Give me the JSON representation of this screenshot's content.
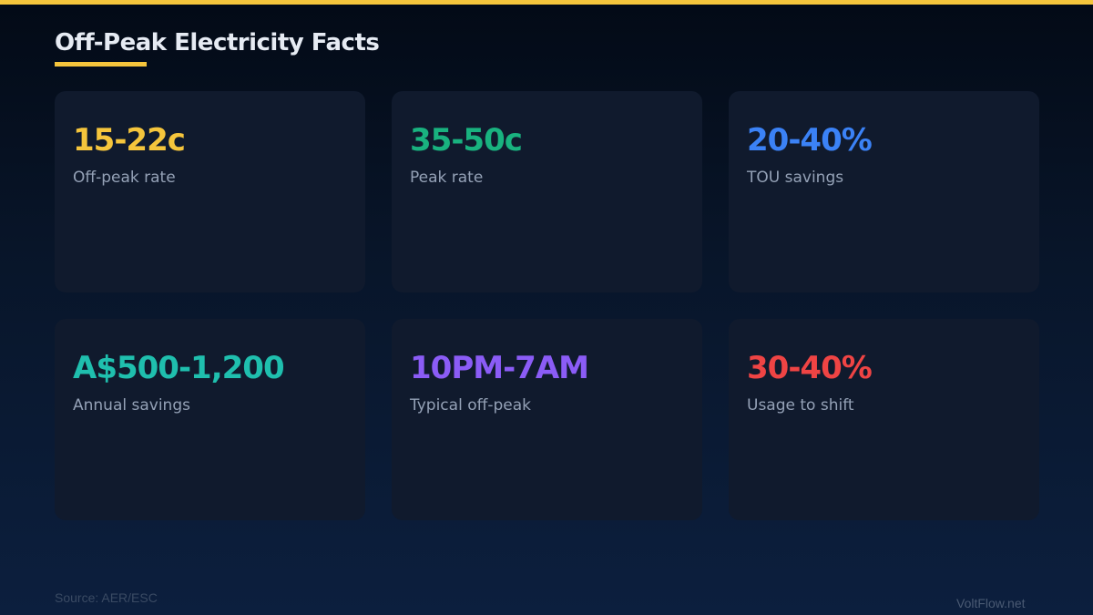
{
  "title": "Off-Peak Electricity Facts",
  "accent": "#f5c53c",
  "cards": [
    {
      "value": "15-22c",
      "label": "Off-peak rate",
      "color": "#f5c53c"
    },
    {
      "value": "35-50c",
      "label": "Peak rate",
      "color": "#19b27f"
    },
    {
      "value": "20-40%",
      "label": "TOU savings",
      "color": "#3b82f6"
    },
    {
      "value": "A$500-1,200",
      "label": "Annual savings",
      "color": "#1fbfae"
    },
    {
      "value": "10PM-7AM",
      "label": "Typical off-peak",
      "color": "#8b5cf6"
    },
    {
      "value": "30-40%",
      "label": "Usage to shift",
      "color": "#ef4444"
    }
  ],
  "footer": {
    "source": "Source: AER/ESC",
    "brand": "VoltFlow.net"
  }
}
